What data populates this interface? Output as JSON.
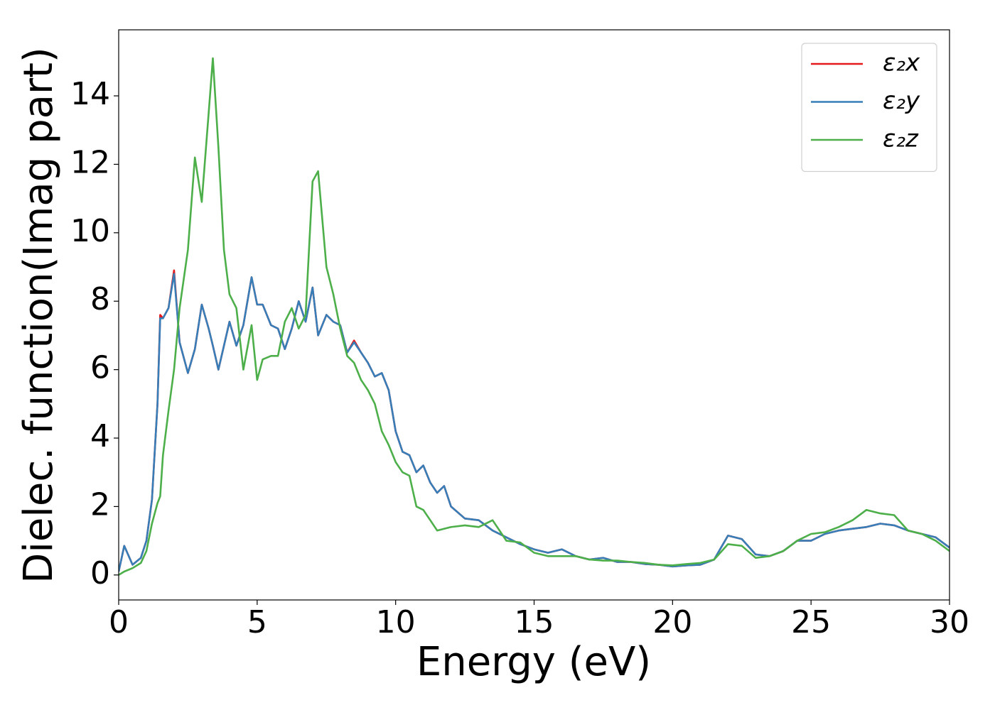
{
  "chart_data": {
    "type": "line",
    "xlabel": "Energy (eV)",
    "ylabel": "Dielec. function(Imag part)",
    "xlim": [
      0,
      30
    ],
    "ylim": [
      -0.73,
      15.93
    ],
    "xticks": [
      0,
      5,
      10,
      15,
      20,
      25,
      30
    ],
    "yticks": [
      0,
      2,
      4,
      6,
      8,
      10,
      12,
      14
    ],
    "legend": "upper right",
    "x": [
      0,
      0.2,
      0.5,
      0.8,
      1.0,
      1.2,
      1.4,
      1.5,
      1.6,
      1.8,
      2.0,
      2.2,
      2.5,
      2.75,
      3.0,
      3.25,
      3.4,
      3.6,
      3.8,
      4.0,
      4.25,
      4.5,
      4.8,
      5.0,
      5.2,
      5.5,
      5.75,
      6.0,
      6.25,
      6.5,
      6.75,
      7.0,
      7.2,
      7.5,
      7.75,
      8.0,
      8.25,
      8.5,
      8.75,
      9.0,
      9.25,
      9.5,
      9.75,
      10.0,
      10.25,
      10.5,
      10.75,
      11.0,
      11.25,
      11.5,
      11.75,
      12.0,
      12.5,
      13.0,
      13.5,
      14.0,
      14.5,
      15,
      15.5,
      16,
      16.5,
      17,
      17.5,
      18,
      18.5,
      19,
      19.5,
      20,
      20.5,
      21,
      21.5,
      22,
      22.5,
      23,
      23.5,
      24,
      24.5,
      25,
      25.5,
      26,
      26.5,
      27,
      27.5,
      28,
      28.5,
      29,
      29.5,
      30
    ],
    "series": [
      {
        "name": "ε₂x",
        "color": "#e41a1c",
        "values": [
          0.1,
          0.85,
          0.3,
          0.5,
          1.0,
          2.2,
          5.0,
          7.6,
          7.5,
          7.8,
          8.9,
          6.8,
          5.9,
          6.6,
          7.9,
          7.2,
          6.7,
          6.0,
          6.7,
          7.4,
          6.7,
          7.3,
          8.7,
          7.9,
          7.9,
          7.3,
          7.2,
          6.6,
          7.2,
          8.0,
          7.4,
          8.4,
          7.0,
          7.6,
          7.4,
          7.3,
          6.5,
          6.85,
          6.5,
          6.2,
          5.8,
          5.9,
          5.4,
          4.2,
          3.6,
          3.5,
          3.0,
          3.2,
          2.7,
          2.4,
          2.6,
          2.0,
          1.65,
          1.6,
          1.3,
          1.1,
          0.9,
          0.75,
          0.65,
          0.75,
          0.55,
          0.45,
          0.5,
          0.38,
          0.38,
          0.32,
          0.3,
          0.25,
          0.28,
          0.3,
          0.45,
          1.15,
          1.05,
          0.6,
          0.55,
          0.7,
          1.0,
          1.0,
          1.2,
          1.3,
          1.35,
          1.4,
          1.5,
          1.45,
          1.3,
          1.2,
          1.1,
          0.8
        ]
      },
      {
        "name": "ε₂y",
        "color": "#377eb8",
        "values": [
          0.1,
          0.85,
          0.3,
          0.5,
          1.0,
          2.2,
          5.0,
          7.5,
          7.5,
          7.8,
          8.8,
          6.8,
          5.9,
          6.6,
          7.9,
          7.2,
          6.7,
          6.0,
          6.7,
          7.4,
          6.7,
          7.3,
          8.7,
          7.9,
          7.9,
          7.3,
          7.2,
          6.6,
          7.2,
          8.0,
          7.4,
          8.4,
          7.0,
          7.6,
          7.4,
          7.3,
          6.5,
          6.8,
          6.5,
          6.2,
          5.8,
          5.9,
          5.4,
          4.2,
          3.6,
          3.5,
          3.0,
          3.2,
          2.7,
          2.4,
          2.6,
          2.0,
          1.65,
          1.6,
          1.3,
          1.1,
          0.9,
          0.75,
          0.65,
          0.75,
          0.55,
          0.45,
          0.5,
          0.38,
          0.38,
          0.32,
          0.3,
          0.25,
          0.28,
          0.3,
          0.45,
          1.15,
          1.05,
          0.6,
          0.55,
          0.7,
          1.0,
          1.0,
          1.2,
          1.3,
          1.35,
          1.4,
          1.5,
          1.45,
          1.3,
          1.2,
          1.1,
          0.8
        ]
      },
      {
        "name": "ε₂z",
        "color": "#4daf4a",
        "values": [
          0.0,
          0.1,
          0.2,
          0.35,
          0.7,
          1.5,
          2.1,
          2.3,
          3.5,
          4.8,
          6.0,
          7.8,
          9.5,
          12.2,
          10.9,
          13.5,
          15.1,
          12.5,
          9.5,
          8.2,
          7.8,
          6.0,
          7.3,
          5.7,
          6.3,
          6.4,
          6.4,
          7.4,
          7.8,
          7.2,
          7.6,
          11.5,
          11.8,
          9.0,
          8.2,
          7.2,
          6.4,
          6.2,
          5.7,
          5.4,
          5.0,
          4.2,
          3.8,
          3.3,
          3.0,
          2.9,
          2.0,
          1.9,
          1.6,
          1.3,
          1.35,
          1.4,
          1.45,
          1.4,
          1.6,
          1.0,
          0.95,
          0.65,
          0.55,
          0.55,
          0.55,
          0.45,
          0.42,
          0.42,
          0.38,
          0.35,
          0.3,
          0.28,
          0.32,
          0.35,
          0.45,
          0.9,
          0.85,
          0.5,
          0.55,
          0.7,
          1.0,
          1.2,
          1.25,
          1.4,
          1.6,
          1.9,
          1.8,
          1.75,
          1.3,
          1.2,
          1.0,
          0.7
        ]
      }
    ]
  }
}
